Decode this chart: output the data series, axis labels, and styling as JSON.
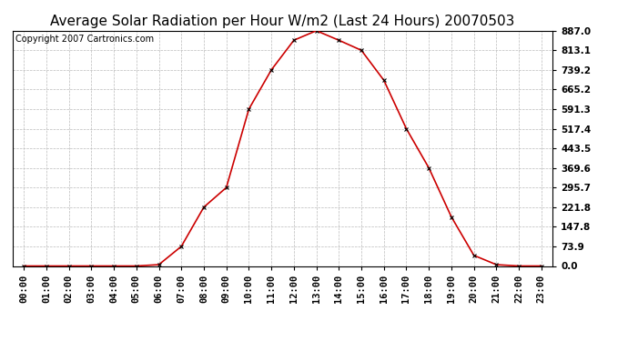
{
  "title": "Average Solar Radiation per Hour W/m2 (Last 24 Hours) 20070503",
  "copyright": "Copyright 2007 Cartronics.com",
  "hours": [
    "00:00",
    "01:00",
    "02:00",
    "03:00",
    "04:00",
    "05:00",
    "06:00",
    "07:00",
    "08:00",
    "09:00",
    "10:00",
    "11:00",
    "12:00",
    "13:00",
    "14:00",
    "15:00",
    "16:00",
    "17:00",
    "18:00",
    "19:00",
    "20:00",
    "21:00",
    "22:00",
    "23:00"
  ],
  "values": [
    0.0,
    0.0,
    0.0,
    0.0,
    0.0,
    0.0,
    5.0,
    73.9,
    221.8,
    295.7,
    591.3,
    739.2,
    851.0,
    887.0,
    851.0,
    813.1,
    700.0,
    517.4,
    369.6,
    185.0,
    40.0,
    5.0,
    0.0,
    0.0
  ],
  "line_color": "#cc0000",
  "marker": "x",
  "marker_color": "#000000",
  "background_color": "#ffffff",
  "grid_color": "#bbbbbb",
  "ytick_labels": [
    "0.0",
    "73.9",
    "147.8",
    "221.8",
    "295.7",
    "369.6",
    "443.5",
    "517.4",
    "591.3",
    "665.2",
    "739.2",
    "813.1",
    "887.0"
  ],
  "ytick_values": [
    0.0,
    73.9,
    147.8,
    221.8,
    295.7,
    369.6,
    443.5,
    517.4,
    591.3,
    665.2,
    739.2,
    813.1,
    887.0
  ],
  "ymax": 887.0,
  "ymin": 0.0,
  "title_fontsize": 11,
  "copyright_fontsize": 7,
  "tick_fontsize": 7.5,
  "figsize": [
    6.9,
    3.75
  ],
  "dpi": 100
}
